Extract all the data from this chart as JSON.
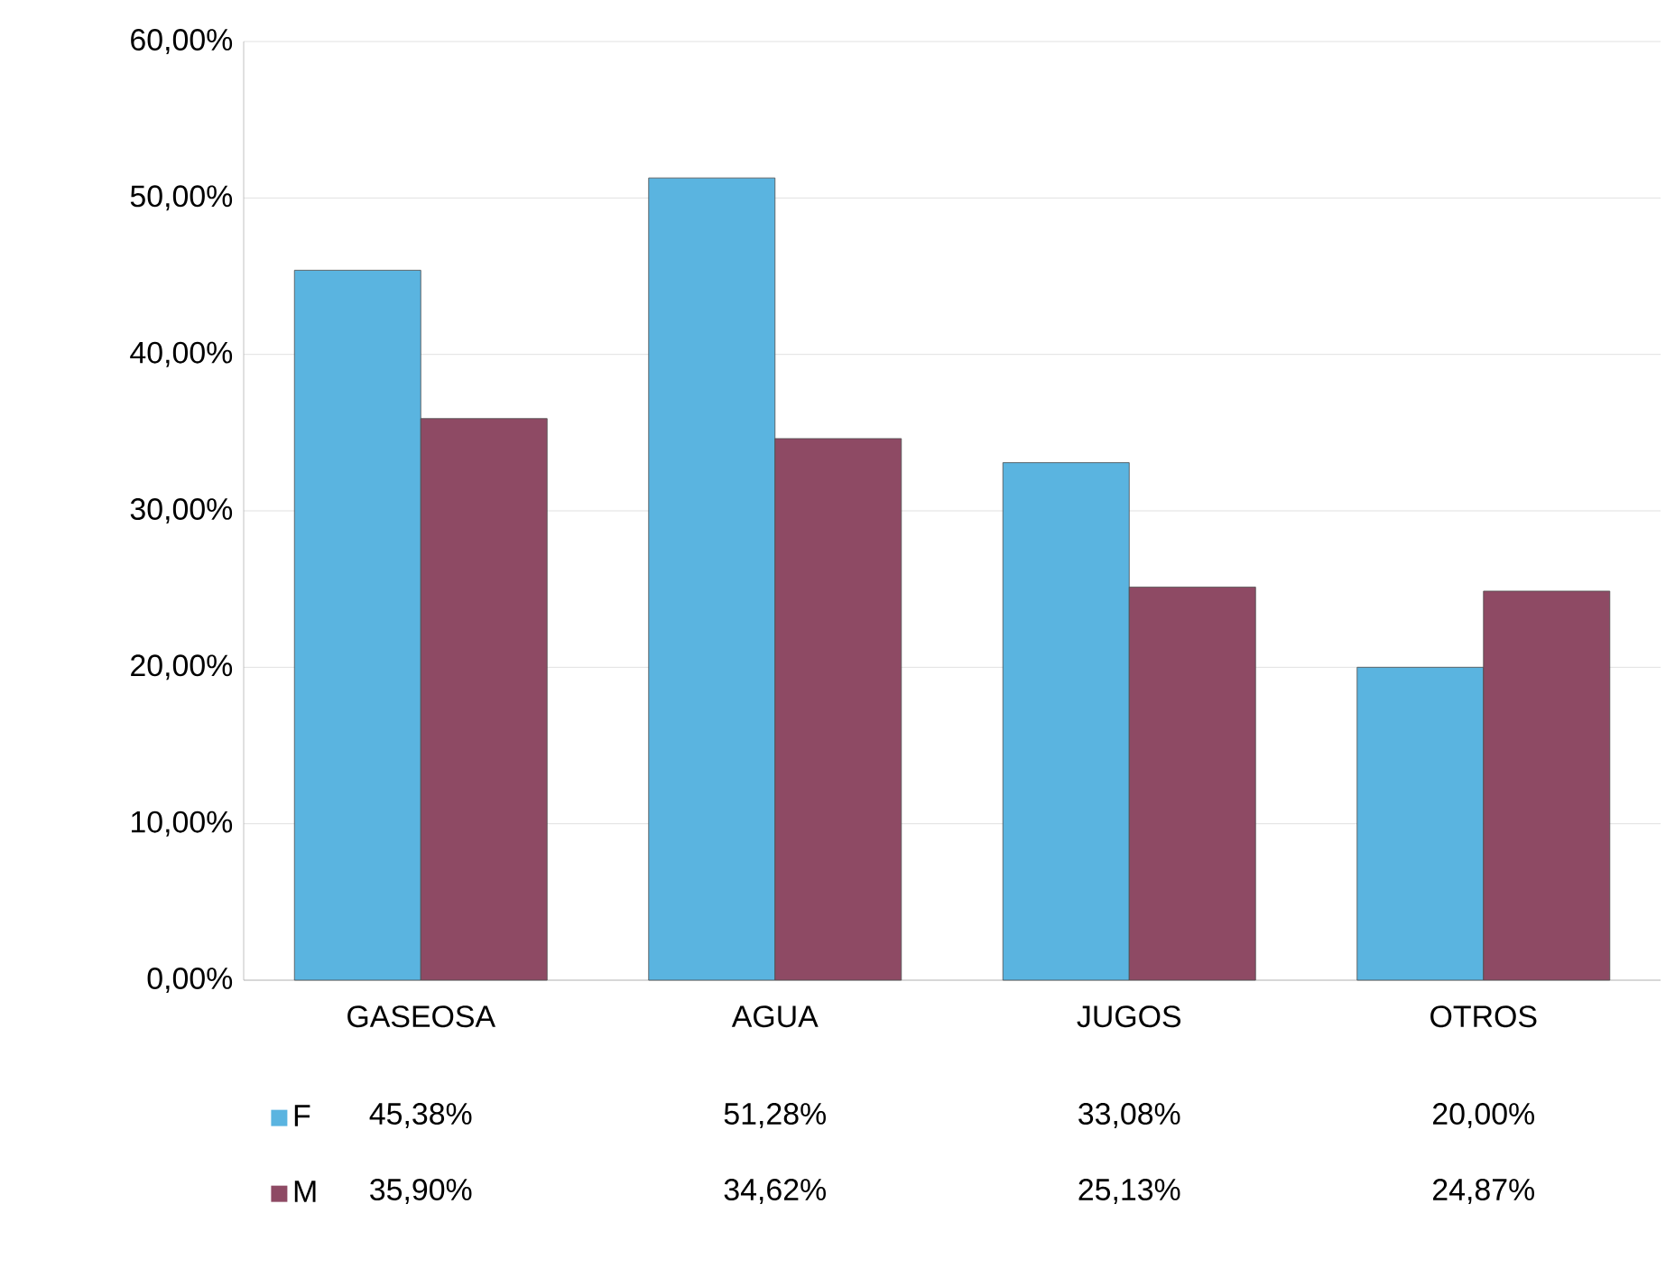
{
  "chart_data": {
    "type": "bar",
    "categories": [
      "GASEOSA",
      "AGUA",
      "JUGOS",
      "OTROS"
    ],
    "series": [
      {
        "name": "F",
        "color": "#5ab4e0",
        "values": [
          45.38,
          51.28,
          33.08,
          20.0
        ],
        "value_labels": [
          "45,38%",
          "51,28%",
          "33,08%",
          "20,00%"
        ]
      },
      {
        "name": "M",
        "color": "#8e4a64",
        "values": [
          35.9,
          34.62,
          25.13,
          24.87
        ],
        "value_labels": [
          "35,90%",
          "34,62%",
          "25,13%",
          "24,87%"
        ]
      }
    ],
    "ylim": [
      0,
      60
    ],
    "yticks": [
      {
        "value": 0,
        "label": "0,00%"
      },
      {
        "value": 10,
        "label": "10,00%"
      },
      {
        "value": 20,
        "label": "20,00%"
      },
      {
        "value": 30,
        "label": "30,00%"
      },
      {
        "value": 40,
        "label": "40,00%"
      },
      {
        "value": 50,
        "label": "50,00%"
      },
      {
        "value": 60,
        "label": "60,00%"
      }
    ],
    "grid": "y",
    "legend": "bottom"
  }
}
